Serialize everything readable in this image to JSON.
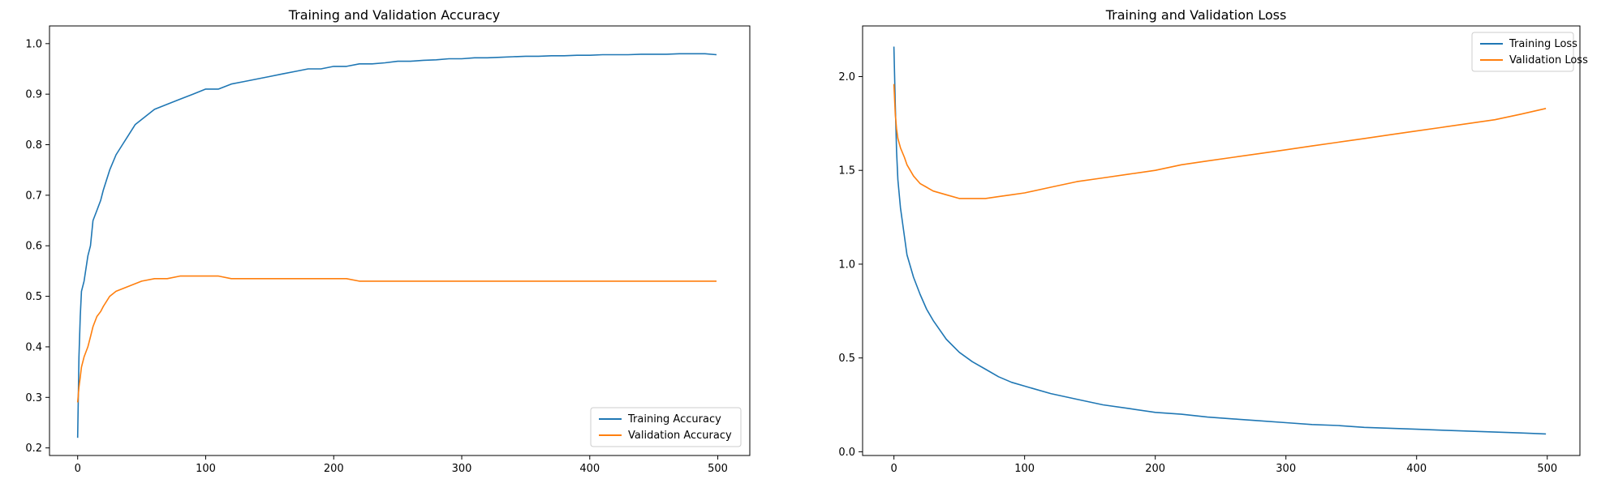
{
  "chart_data": [
    {
      "type": "line",
      "title": "Training and Validation Accuracy",
      "xlabel": "",
      "ylabel": "",
      "xlim": [
        -22,
        525
      ],
      "ylim": [
        0.185,
        1.035
      ],
      "xticks": [
        0,
        100,
        200,
        300,
        400,
        500
      ],
      "yticks": [
        0.2,
        0.3,
        0.4,
        0.5,
        0.6,
        0.7,
        0.8,
        0.9,
        1.0
      ],
      "ytick_labels": [
        "0.2",
        "0.3",
        "0.4",
        "0.5",
        "0.6",
        "0.7",
        "0.8",
        "0.9",
        "1.0"
      ],
      "legend": "lower-right",
      "grid": false,
      "series": [
        {
          "name": "Training Accuracy",
          "color": "#1f77b4",
          "x": [
            0,
            1,
            2,
            3,
            5,
            8,
            10,
            12,
            15,
            18,
            20,
            25,
            30,
            35,
            40,
            45,
            50,
            60,
            70,
            80,
            90,
            100,
            110,
            120,
            130,
            140,
            150,
            160,
            170,
            180,
            190,
            200,
            210,
            220,
            230,
            240,
            250,
            260,
            270,
            280,
            290,
            300,
            310,
            320,
            330,
            340,
            350,
            360,
            370,
            380,
            390,
            400,
            410,
            420,
            430,
            440,
            450,
            460,
            470,
            480,
            490,
            499
          ],
          "y": [
            0.22,
            0.38,
            0.46,
            0.51,
            0.53,
            0.58,
            0.6,
            0.65,
            0.67,
            0.69,
            0.71,
            0.75,
            0.78,
            0.8,
            0.82,
            0.84,
            0.85,
            0.87,
            0.88,
            0.89,
            0.9,
            0.91,
            0.91,
            0.92,
            0.925,
            0.93,
            0.935,
            0.94,
            0.945,
            0.95,
            0.95,
            0.955,
            0.955,
            0.96,
            0.96,
            0.962,
            0.965,
            0.965,
            0.967,
            0.968,
            0.97,
            0.97,
            0.972,
            0.972,
            0.973,
            0.974,
            0.975,
            0.975,
            0.976,
            0.976,
            0.977,
            0.977,
            0.978,
            0.978,
            0.978,
            0.979,
            0.979,
            0.979,
            0.98,
            0.98,
            0.98,
            0.978
          ]
        },
        {
          "name": "Validation Accuracy",
          "color": "#ff7f0e",
          "x": [
            0,
            1,
            2,
            3,
            5,
            8,
            10,
            12,
            15,
            18,
            20,
            25,
            30,
            35,
            40,
            45,
            50,
            60,
            70,
            80,
            90,
            100,
            110,
            120,
            130,
            140,
            150,
            160,
            170,
            180,
            190,
            200,
            210,
            220,
            230,
            240,
            250,
            260,
            270,
            280,
            290,
            300,
            310,
            320,
            330,
            340,
            350,
            360,
            370,
            380,
            390,
            400,
            410,
            420,
            430,
            440,
            450,
            460,
            470,
            480,
            490,
            499
          ],
          "y": [
            0.29,
            0.32,
            0.34,
            0.36,
            0.38,
            0.4,
            0.42,
            0.44,
            0.46,
            0.47,
            0.48,
            0.5,
            0.51,
            0.515,
            0.52,
            0.525,
            0.53,
            0.535,
            0.535,
            0.54,
            0.54,
            0.54,
            0.54,
            0.535,
            0.535,
            0.535,
            0.535,
            0.535,
            0.535,
            0.535,
            0.535,
            0.535,
            0.535,
            0.53,
            0.53,
            0.53,
            0.53,
            0.53,
            0.53,
            0.53,
            0.53,
            0.53,
            0.53,
            0.53,
            0.53,
            0.53,
            0.53,
            0.53,
            0.53,
            0.53,
            0.53,
            0.53,
            0.53,
            0.53,
            0.53,
            0.53,
            0.53,
            0.53,
            0.53,
            0.53,
            0.53,
            0.53
          ]
        }
      ]
    },
    {
      "type": "line",
      "title": "Training and Validation Loss",
      "xlabel": "",
      "ylabel": "",
      "xlim": [
        -24,
        525
      ],
      "ylim": [
        -0.02,
        2.27
      ],
      "xticks": [
        0,
        100,
        200,
        300,
        400,
        500
      ],
      "yticks": [
        0.0,
        0.5,
        1.0,
        1.5,
        2.0
      ],
      "ytick_labels": [
        "0.0",
        "0.5",
        "1.0",
        "1.5",
        "2.0"
      ],
      "legend": "upper-right",
      "grid": false,
      "series": [
        {
          "name": "Training Loss",
          "color": "#1f77b4",
          "x": [
            0,
            1,
            2,
            3,
            5,
            8,
            10,
            15,
            20,
            25,
            30,
            40,
            50,
            60,
            70,
            80,
            90,
            100,
            120,
            140,
            160,
            180,
            200,
            220,
            240,
            260,
            280,
            300,
            320,
            340,
            360,
            380,
            400,
            420,
            440,
            460,
            480,
            499
          ],
          "y": [
            2.16,
            1.85,
            1.6,
            1.45,
            1.3,
            1.15,
            1.05,
            0.93,
            0.84,
            0.76,
            0.7,
            0.6,
            0.53,
            0.48,
            0.44,
            0.4,
            0.37,
            0.35,
            0.31,
            0.28,
            0.25,
            0.23,
            0.21,
            0.2,
            0.185,
            0.175,
            0.165,
            0.155,
            0.145,
            0.14,
            0.13,
            0.125,
            0.12,
            0.115,
            0.11,
            0.105,
            0.1,
            0.095
          ]
        },
        {
          "name": "Validation Loss",
          "color": "#ff7f0e",
          "x": [
            0,
            1,
            2,
            3,
            5,
            8,
            10,
            15,
            20,
            25,
            30,
            40,
            50,
            60,
            70,
            80,
            90,
            100,
            120,
            140,
            160,
            180,
            200,
            220,
            240,
            260,
            280,
            300,
            320,
            340,
            360,
            380,
            400,
            420,
            440,
            460,
            480,
            499
          ],
          "y": [
            1.96,
            1.8,
            1.72,
            1.67,
            1.62,
            1.57,
            1.53,
            1.47,
            1.43,
            1.41,
            1.39,
            1.37,
            1.35,
            1.35,
            1.35,
            1.36,
            1.37,
            1.38,
            1.41,
            1.44,
            1.46,
            1.48,
            1.5,
            1.53,
            1.55,
            1.57,
            1.59,
            1.61,
            1.63,
            1.65,
            1.67,
            1.69,
            1.71,
            1.73,
            1.75,
            1.77,
            1.8,
            1.83
          ]
        }
      ]
    }
  ]
}
